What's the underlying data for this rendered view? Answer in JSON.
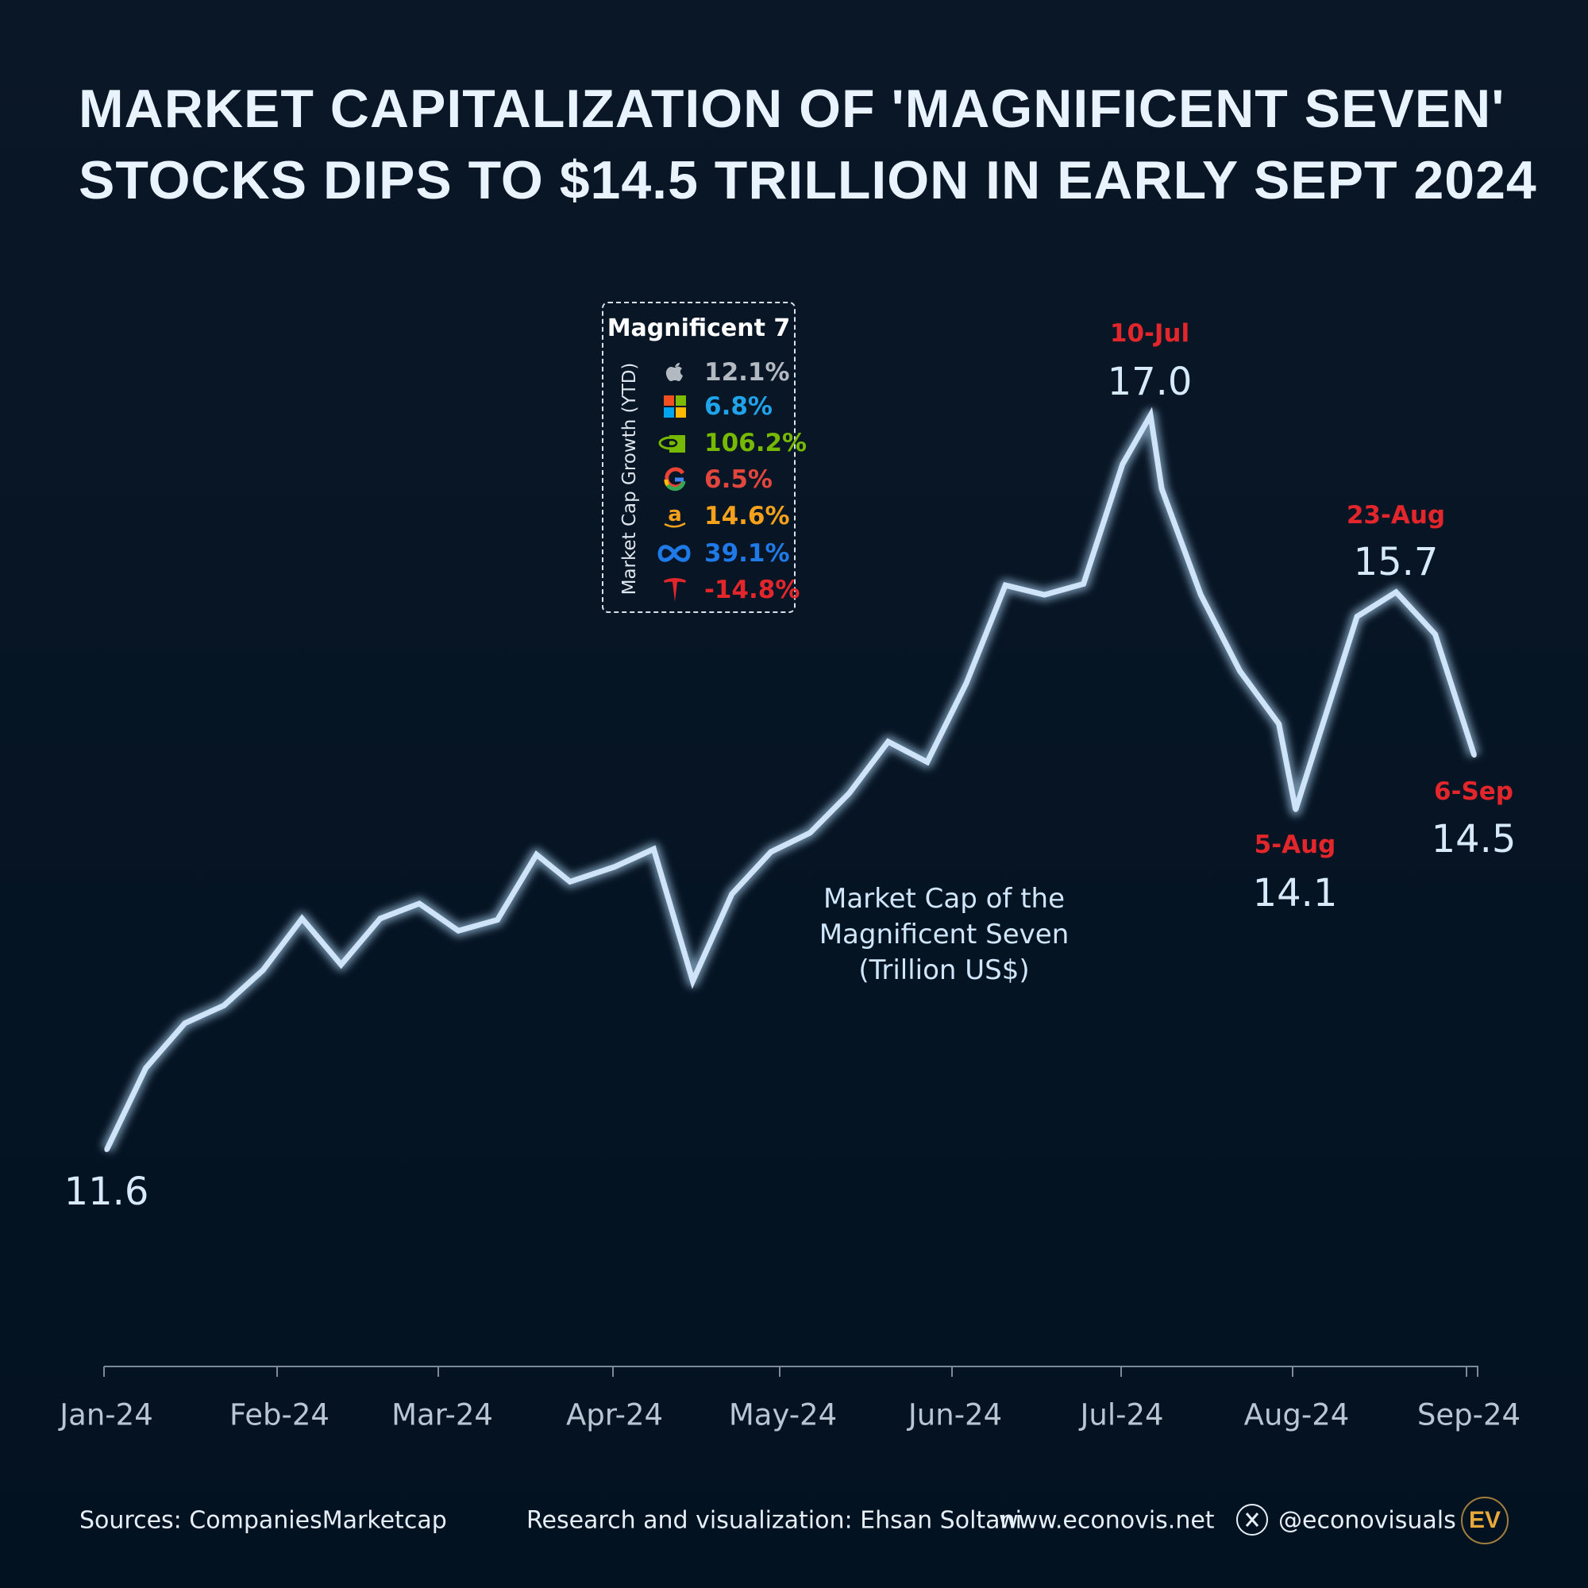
{
  "title": {
    "line1": "Market Capitalization of 'Magnificent Seven'",
    "line2": "Stocks Dips to $14.5 Trillion in Early Sept 2024"
  },
  "chart_data": {
    "type": "line",
    "title": "Market Capitalization of 'Magnificent Seven' Stocks Dips to $14.5 Trillion in Early Sept 2024",
    "series_label": "Market Cap of the Magnificent Seven (Trillion US$)",
    "x": [
      "2024-01-05",
      "2024-01-12",
      "2024-01-19",
      "2024-01-26",
      "2024-02-02",
      "2024-02-09",
      "2024-02-16",
      "2024-02-23",
      "2024-03-01",
      "2024-03-08",
      "2024-03-15",
      "2024-03-22",
      "2024-03-28",
      "2024-04-05",
      "2024-04-12",
      "2024-04-19",
      "2024-04-26",
      "2024-05-03",
      "2024-05-10",
      "2024-05-17",
      "2024-05-24",
      "2024-05-31",
      "2024-06-07",
      "2024-06-14",
      "2024-06-21",
      "2024-06-28",
      "2024-07-05",
      "2024-07-10",
      "2024-07-12",
      "2024-07-19",
      "2024-07-26",
      "2024-08-02",
      "2024-08-05",
      "2024-08-16",
      "2024-08-23",
      "2024-08-30",
      "2024-09-06"
    ],
    "values": [
      11.6,
      12.2,
      12.53,
      12.66,
      12.92,
      13.3,
      12.96,
      13.3,
      13.41,
      13.21,
      13.29,
      13.77,
      13.57,
      13.68,
      13.81,
      12.84,
      13.48,
      13.79,
      13.93,
      14.22,
      14.6,
      14.45,
      15.03,
      15.75,
      15.68,
      15.76,
      16.64,
      17.0,
      16.46,
      15.68,
      15.12,
      14.73,
      14.1,
      15.52,
      15.7,
      15.39,
      14.5
    ],
    "x_ticks": [
      "Jan-24",
      "Feb-24",
      "Mar-24",
      "Apr-24",
      "May-24",
      "Jun-24",
      "Jul-24",
      "Aug-24",
      "Sep-24"
    ],
    "annotations": [
      {
        "date_label": "",
        "value_label": "11.6"
      },
      {
        "date_label": "10-Jul",
        "value_label": "17.0"
      },
      {
        "date_label": "5-Aug",
        "value_label": "14.1"
      },
      {
        "date_label": "23-Aug",
        "value_label": "15.7"
      },
      {
        "date_label": "6-Sep",
        "value_label": "14.5"
      }
    ],
    "line_color": "#cfe4f8",
    "highlight_color": "#e3262b",
    "grid": false,
    "ylim": [
      11.6,
      17.0
    ]
  },
  "annotation": {
    "line1": "Market Cap of the",
    "line2": "Magnificent Seven",
    "line3": "(Trillion US$)"
  },
  "legend": {
    "title": "Magnificent 7",
    "vertical_label": "Market Cap Growth (YTD)",
    "items": [
      {
        "company": "Apple",
        "icon": "apple-icon",
        "value": "12.1%",
        "color": "#b3b9c0"
      },
      {
        "company": "Microsoft",
        "icon": "microsoft-icon",
        "value": "6.8%",
        "color": "#1fa3ea"
      },
      {
        "company": "Nvidia",
        "icon": "nvidia-icon",
        "value": "106.2%",
        "color": "#76b900"
      },
      {
        "company": "Google",
        "icon": "google-icon",
        "value": "6.5%",
        "color": "#e2463c"
      },
      {
        "company": "Amazon",
        "icon": "amazon-icon",
        "value": "14.6%",
        "color": "#f6a11c"
      },
      {
        "company": "Meta",
        "icon": "meta-icon",
        "value": "39.1%",
        "color": "#1f7ae8"
      },
      {
        "company": "Tesla",
        "icon": "tesla-icon",
        "value": "-14.8%",
        "color": "#e3262b"
      }
    ]
  },
  "footer": {
    "sources": "Sources: CompaniesMarketcap",
    "credit": "Research and visualization: Ehsan Soltani",
    "website": "www.econovis.net",
    "handle": "@econovisuals",
    "logo": "EV"
  }
}
